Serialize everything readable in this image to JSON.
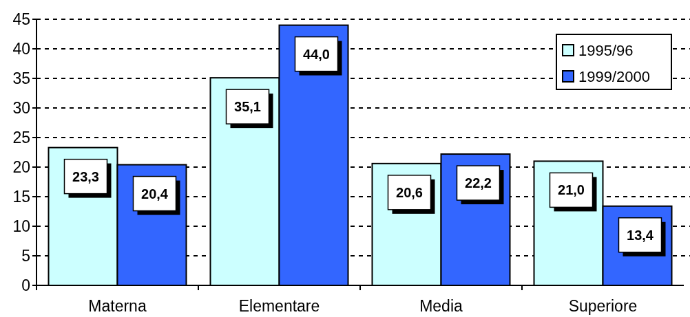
{
  "chart_data": {
    "type": "bar",
    "categories": [
      "Materna",
      "Elementare",
      "Media",
      "Superiore"
    ],
    "series": [
      {
        "name": "1995/96",
        "color": "#ccffff",
        "values": [
          23.3,
          35.1,
          20.6,
          21.0
        ],
        "value_labels": [
          "23,3",
          "35,1",
          "20,6",
          "21,0"
        ]
      },
      {
        "name": "1999/2000",
        "color": "#3366ff",
        "values": [
          20.4,
          44.0,
          22.2,
          13.4
        ],
        "value_labels": [
          "20,4",
          "44,0",
          "22,2",
          "13,4"
        ]
      }
    ],
    "ylim": [
      0,
      45
    ],
    "yticks": [
      0,
      5,
      10,
      15,
      20,
      25,
      30,
      35,
      40,
      45
    ],
    "grid": "y",
    "legend": "top right"
  }
}
